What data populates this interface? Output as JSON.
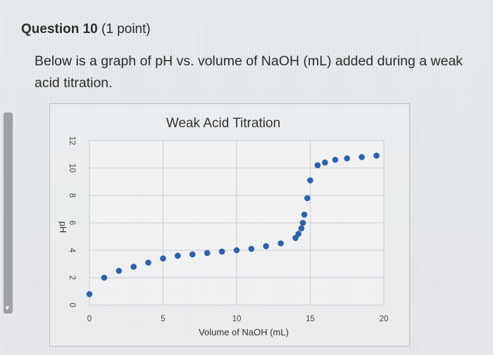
{
  "question": {
    "heading": "Question 10",
    "points": "(1 point)",
    "prompt": "Below is a graph of pH vs. volume of NaOH (mL) added during a weak acid titration."
  },
  "chart_data": {
    "type": "scatter",
    "title": "Weak Acid Titration",
    "xlabel": "Volume of NaOH (mL)",
    "ylabel": "pH",
    "xlim": [
      0,
      20
    ],
    "ylim": [
      0,
      12
    ],
    "x_ticks": [
      0,
      5,
      10,
      15,
      20
    ],
    "y_ticks": [
      0,
      2,
      4,
      6,
      8,
      10,
      12
    ],
    "grid": true,
    "marker_color": "#2e62a8",
    "x": [
      0,
      1,
      2,
      3,
      4,
      5,
      6,
      7,
      8,
      9,
      10,
      11,
      12,
      13,
      14,
      14.2,
      14.4,
      14.5,
      14.6,
      14.8,
      15,
      15.5,
      16,
      16.7,
      17.5,
      18.5,
      19.5
    ],
    "y": [
      0.8,
      2.0,
      2.5,
      2.8,
      3.1,
      3.4,
      3.6,
      3.7,
      3.8,
      3.9,
      4.0,
      4.1,
      4.3,
      4.5,
      4.9,
      5.2,
      5.6,
      6.0,
      6.6,
      7.8,
      9.1,
      10.2,
      10.4,
      10.6,
      10.7,
      10.8,
      10.9
    ]
  }
}
